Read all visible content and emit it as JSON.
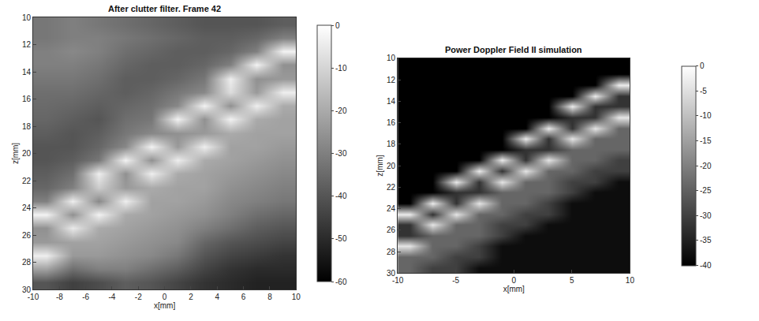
{
  "chart_data": [
    {
      "type": "heatmap",
      "title": "After clutter filter. Frame 42",
      "x_label": "x[mm]",
      "y_label": "z[mm]",
      "xlim": [
        -10,
        10
      ],
      "ylim": [
        30,
        10
      ],
      "xticks": [
        -10,
        -8,
        -6,
        -4,
        -2,
        0,
        2,
        4,
        6,
        8,
        10
      ],
      "yticks": [
        10,
        12,
        14,
        16,
        18,
        20,
        22,
        24,
        26,
        28,
        30
      ],
      "colorbar_range": [
        -60,
        0
      ],
      "colorbar_ticks": [
        0,
        -10,
        -20,
        -30,
        -40,
        -50,
        -60
      ],
      "x": [
        -9,
        -7,
        -5,
        -3,
        -1,
        1,
        3,
        5,
        7,
        9
      ],
      "y": [
        10.5,
        11.5,
        12.5,
        13.5,
        14.5,
        15.5,
        16.5,
        17.5,
        18.5,
        19.5,
        20.5,
        21.5,
        22.5,
        23.5,
        24.5,
        25.5,
        26.5,
        27.5,
        28.5,
        29.5
      ],
      "cells": [
        [
          -32,
          -30,
          -32,
          -34,
          -36,
          -38,
          -40,
          -40,
          -40,
          -38
        ],
        [
          -32,
          -30,
          -30,
          -32,
          -34,
          -36,
          -38,
          -38,
          -36,
          -30
        ],
        [
          -30,
          -28,
          -30,
          -34,
          -36,
          -38,
          -38,
          -36,
          -30,
          -3
        ],
        [
          -30,
          -30,
          -32,
          -36,
          -38,
          -38,
          -36,
          -30,
          -3,
          -26
        ],
        [
          -32,
          -32,
          -34,
          -38,
          -38,
          -36,
          -32,
          -4,
          -26,
          -24
        ],
        [
          -34,
          -34,
          -36,
          -38,
          -36,
          -32,
          -28,
          -8,
          -24,
          -4
        ],
        [
          -35,
          -36,
          -38,
          -36,
          -34,
          -28,
          -3,
          -26,
          -4,
          -20
        ],
        [
          -36,
          -38,
          -40,
          -34,
          -32,
          -3,
          -26,
          -3,
          -20,
          -22
        ],
        [
          -38,
          -40,
          -38,
          -32,
          -28,
          -26,
          -24,
          -20,
          -22,
          -22
        ],
        [
          -40,
          -40,
          -36,
          -28,
          -3,
          -24,
          -4,
          -22,
          -22,
          -24
        ],
        [
          -40,
          -38,
          -32,
          -3,
          -26,
          -4,
          -20,
          -22,
          -24,
          -26
        ],
        [
          -38,
          -34,
          -4,
          -26,
          -4,
          -20,
          -22,
          -24,
          -26,
          -28
        ],
        [
          -36,
          -30,
          -12,
          -24,
          -20,
          -22,
          -22,
          -26,
          -28,
          -30
        ],
        [
          -30,
          -4,
          -28,
          -4,
          -22,
          -22,
          -24,
          -28,
          -30,
          -32
        ],
        [
          -3,
          -26,
          -3,
          -20,
          -22,
          -24,
          -26,
          -30,
          -34,
          -36
        ],
        [
          -26,
          -5,
          -20,
          -22,
          -24,
          -26,
          -30,
          -34,
          -38,
          -40
        ],
        [
          -24,
          -22,
          -22,
          -24,
          -26,
          -28,
          -36,
          -40,
          -42,
          -44
        ],
        [
          -4,
          -24,
          -24,
          -26,
          -28,
          -32,
          -40,
          -44,
          -46,
          -48
        ],
        [
          -22,
          -34,
          -30,
          -30,
          -34,
          -38,
          -44,
          -48,
          -50,
          -50
        ],
        [
          -40,
          -45,
          -42,
          -38,
          -40,
          -44,
          -48,
          -50,
          -52,
          -52
        ]
      ]
    },
    {
      "type": "heatmap",
      "title": "Power Doppler Field II simulation",
      "x_label": "x[mm]",
      "y_label": "z[mm]",
      "xlim": [
        -10,
        10
      ],
      "ylim": [
        30,
        10
      ],
      "xticks": [
        -10,
        -5,
        0,
        5,
        10
      ],
      "yticks": [
        10,
        12,
        14,
        16,
        18,
        20,
        22,
        24,
        26,
        28,
        30
      ],
      "colorbar_range": [
        -40,
        0
      ],
      "colorbar_ticks": [
        0,
        -5,
        -10,
        -15,
        -20,
        -25,
        -30,
        -35,
        -40
      ],
      "x": [
        -9,
        -7,
        -5,
        -3,
        -1,
        1,
        3,
        5,
        7,
        9
      ],
      "y": [
        10.5,
        11.5,
        12.5,
        13.5,
        14.5,
        15.5,
        16.5,
        17.5,
        18.5,
        19.5,
        20.5,
        21.5,
        22.5,
        23.5,
        24.5,
        25.5,
        26.5,
        27.5,
        28.5,
        29.5
      ],
      "cells": [
        [
          -40,
          -40,
          -40,
          -40,
          -40,
          -40,
          -40,
          -40,
          -40,
          -40
        ],
        [
          -40,
          -40,
          -40,
          -40,
          -40,
          -40,
          -40,
          -40,
          -40,
          -40
        ],
        [
          -40,
          -40,
          -40,
          -40,
          -40,
          -40,
          -40,
          -40,
          -40,
          -3
        ],
        [
          -40,
          -40,
          -40,
          -40,
          -40,
          -40,
          -40,
          -40,
          -3,
          -32
        ],
        [
          -40,
          -40,
          -40,
          -40,
          -40,
          -40,
          -40,
          -3,
          -32,
          -32
        ],
        [
          -40,
          -40,
          -40,
          -40,
          -40,
          -40,
          -40,
          -32,
          -32,
          -4
        ],
        [
          -40,
          -40,
          -40,
          -40,
          -40,
          -40,
          -3,
          -32,
          -4,
          -24
        ],
        [
          -40,
          -40,
          -40,
          -40,
          -40,
          -3,
          -32,
          -4,
          -24,
          -24
        ],
        [
          -40,
          -40,
          -40,
          -40,
          -40,
          -32,
          -32,
          -24,
          -24,
          -24
        ],
        [
          -40,
          -40,
          -40,
          -40,
          -3,
          -32,
          -4,
          -24,
          -24,
          -30
        ],
        [
          -40,
          -40,
          -40,
          -3,
          -32,
          -4,
          -24,
          -24,
          -30,
          -30
        ],
        [
          -40,
          -40,
          -3,
          -32,
          -4,
          -24,
          -24,
          -30,
          -30,
          -38
        ],
        [
          -40,
          -40,
          -32,
          -32,
          -24,
          -24,
          -24,
          -30,
          -38,
          -38
        ],
        [
          -40,
          -3,
          -32,
          -4,
          -24,
          -24,
          -30,
          -38,
          -38,
          -38
        ],
        [
          -3,
          -32,
          -4,
          -24,
          -24,
          -30,
          -30,
          -38,
          -38,
          -38
        ],
        [
          -32,
          -4,
          -24,
          -24,
          -30,
          -30,
          -38,
          -38,
          -38,
          -38
        ],
        [
          -32,
          -24,
          -24,
          -24,
          -30,
          -38,
          -38,
          -38,
          -38,
          -38
        ],
        [
          -4,
          -24,
          -24,
          -30,
          -38,
          -38,
          -38,
          -38,
          -38,
          -38
        ],
        [
          -24,
          -24,
          -30,
          -30,
          -38,
          -38,
          -38,
          -38,
          -38,
          -38
        ],
        [
          -24,
          -30,
          -30,
          -38,
          -38,
          -38,
          -38,
          -38,
          -38,
          -38
        ]
      ]
    }
  ]
}
